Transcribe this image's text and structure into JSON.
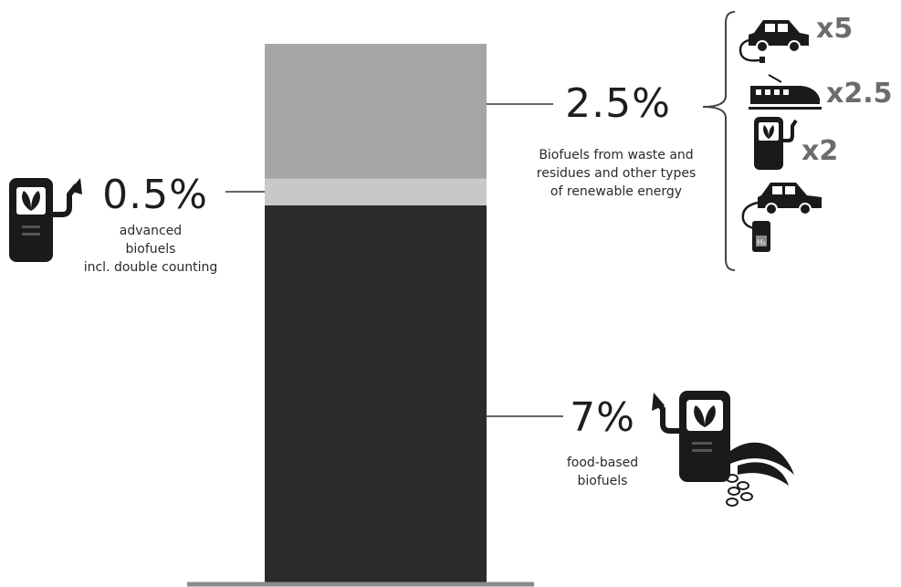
{
  "chart_data": {
    "type": "bar",
    "stacked": true,
    "categories": [
      ""
    ],
    "series": [
      {
        "name": "food-based biofuels",
        "values": [
          7
        ],
        "color": "#2b2b2b"
      },
      {
        "name": "advanced biofuels incl. double counting",
        "values": [
          0.5
        ],
        "color": "#c8c8c8"
      },
      {
        "name": "Biofuels from waste and residues and other types of renewable energy",
        "values": [
          2.5
        ],
        "color": "#a6a6a6"
      }
    ],
    "ylim": [
      0,
      10
    ],
    "grid": false,
    "legend": "none"
  },
  "labels": {
    "top": {
      "value": "2.5%",
      "lines": [
        "Biofuels from waste and",
        "residues and other types",
        "of renewable energy"
      ]
    },
    "middle": {
      "value": "0.5%",
      "lines": [
        "advanced",
        "biofuels",
        "incl. double counting"
      ]
    },
    "bottom": {
      "value": "7%",
      "lines": [
        "food-based",
        "biofuels"
      ]
    }
  },
  "multipliers": [
    {
      "text": "x5",
      "icon": "electric-car-icon"
    },
    {
      "text": "x2.5",
      "icon": "electric-train-icon"
    },
    {
      "text": "x2",
      "icon": "biofuel-pump-icon"
    },
    {
      "text": "",
      "icon": "hydrogen-car-icon"
    }
  ],
  "icons": {
    "left": "biofuel-pump-icon",
    "right": "biofuel-pump-with-crops-icon"
  }
}
